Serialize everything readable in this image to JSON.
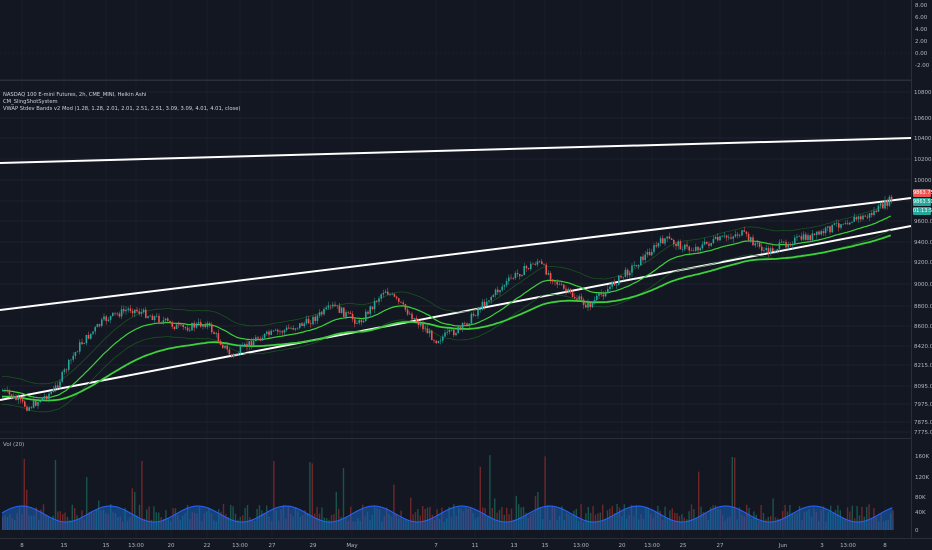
{
  "header": {
    "symbol_line": "NASDAQ 100 E-mini Futures, 2h, CME_MINI, Heikin Ashi",
    "indicator_1": "CM_SlingShotSystem",
    "indicator_2": "VWAP Stdev Bands v2 Mod (1.28, 1.28, 2.01, 2.01, 2.51, 2.51, 3.09, 3.09, 4.01, 4.01, close)"
  },
  "top_pane": {
    "ticks": [
      "8.00",
      "6.00",
      "4.00",
      "2.00",
      "0.00",
      "-2.00"
    ]
  },
  "price_axis": {
    "ticks": [
      "10800.00",
      "10600.00",
      "10400.00",
      "10200.00",
      "10000.00",
      "9800.00",
      "9600.00",
      "9400.00",
      "9200.00",
      "9000.00",
      "8800.00",
      "8600.00",
      "8420.00",
      "8215.00",
      "8095.00",
      "7975.00",
      "7875.00",
      "7775.00"
    ],
    "badges": [
      {
        "text": "9863.75",
        "color": "#ef5350"
      },
      {
        "text": "9863.50",
        "color": "#26a69a"
      },
      {
        "text": "01:13:54",
        "color": "#26a69a"
      }
    ]
  },
  "volume_pane": {
    "label": "Vol (20)",
    "ticks": [
      "160K",
      "120K",
      "80K",
      "40K",
      "0"
    ]
  },
  "time_axis": {
    "ticks": [
      "8",
      "15",
      "15",
      "13:00",
      "20",
      "22",
      "13:00",
      "27",
      "29",
      "May",
      "7",
      "11",
      "13",
      "15",
      "13:00",
      "20",
      "13:00",
      "25",
      "27",
      "Jun",
      "3",
      "13:00",
      "8"
    ]
  },
  "colors": {
    "background": "#131722",
    "up": "#26a69a",
    "down": "#ef5350",
    "channel": "#ffffff",
    "vwap": "#3cd13c",
    "volume_ma": "#2962ff"
  },
  "chart_data": {
    "type": "candlestick",
    "symbol": "NASDAQ 100 E-mini Futures",
    "interval": "2h",
    "ylim": [
      7700,
      10950
    ],
    "price_path": [
      [
        "Apr 7",
        8150
      ],
      [
        "Apr 8",
        8000
      ],
      [
        "Apr 9",
        8150
      ],
      [
        "Apr 13",
        8550
      ],
      [
        "Apr 14",
        8780
      ],
      [
        "Apr 15",
        8880
      ],
      [
        "Apr 16",
        8800
      ],
      [
        "Apr 17",
        8700
      ],
      [
        "Apr 20",
        8750
      ],
      [
        "Apr 21",
        8450
      ],
      [
        "Apr 22",
        8620
      ],
      [
        "Apr 23",
        8680
      ],
      [
        "Apr 24",
        8760
      ],
      [
        "Apr 27",
        8900
      ],
      [
        "Apr 28",
        8750
      ],
      [
        "Apr 29",
        9050
      ],
      [
        "Apr 30",
        8830
      ],
      [
        "May 1",
        8600
      ],
      [
        "May 4",
        8700
      ],
      [
        "May 6",
        8950
      ],
      [
        "May 7",
        9150
      ],
      [
        "May 11",
        9300
      ],
      [
        "May 12",
        9050
      ],
      [
        "May 13",
        8900
      ],
      [
        "May 15",
        9100
      ],
      [
        "May 18",
        9300
      ],
      [
        "May 20",
        9500
      ],
      [
        "May 21",
        9400
      ],
      [
        "May 22",
        9480
      ],
      [
        "May 26",
        9550
      ],
      [
        "May 27",
        9380
      ],
      [
        "May 29",
        9480
      ],
      [
        "Jun 1",
        9530
      ],
      [
        "Jun 3",
        9650
      ],
      [
        "Jun 5",
        9700
      ],
      [
        "Jun 8",
        9863.5
      ]
    ],
    "volume_ticks": [
      0,
      40000,
      80000,
      120000,
      160000
    ]
  }
}
